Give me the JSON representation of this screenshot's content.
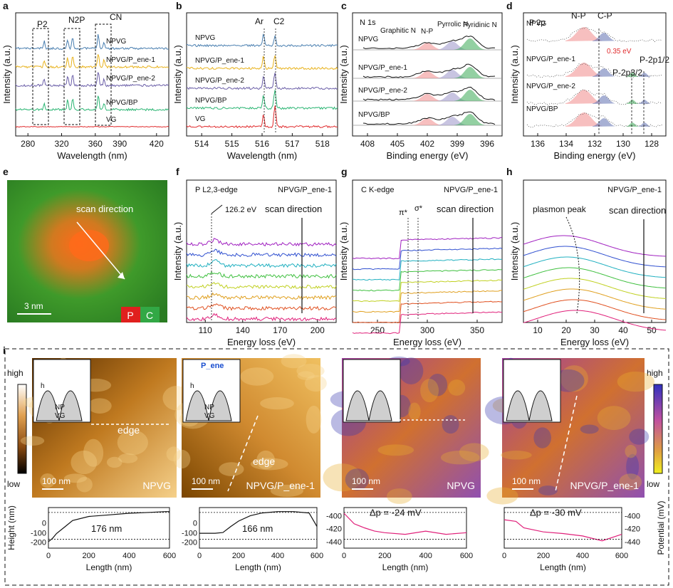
{
  "panel_letters": [
    "a",
    "b",
    "c",
    "d",
    "e",
    "f",
    "g",
    "h",
    "i"
  ],
  "colors": {
    "NPVG": "#4a7fb0",
    "NPVG/P_ene-1": "#e8b21c",
    "NPVG/P_ene-2": "#6b5fa8",
    "NPVG/BP": "#2bb573",
    "VG": "#e0292b",
    "NP": "#f08a8a",
    "Pyrrolic": "#9b93c9",
    "Pyridinic": "#3aaa55",
    "CP": "#5f6fb0",
    "scan": [
      "#a020c0",
      "#3050d0",
      "#20b0c0",
      "#40c040",
      "#c0d020",
      "#e0a020",
      "#e05020",
      "#e0207a"
    ]
  },
  "chart_data": [
    {
      "type": "line",
      "panel": "a",
      "xlabel": "Wavelength (nm)",
      "ylabel": "Intensity (a.u.)",
      "ticks": [
        "280",
        "320",
        "360",
        "390",
        "420"
      ],
      "series": [
        {
          "name": "NPVG"
        },
        {
          "name": "NPVG/P_ene-1"
        },
        {
          "name": "NPVG/P_ene-2"
        },
        {
          "name": "NPVG/BP"
        },
        {
          "name": "VG"
        }
      ],
      "annotations": [
        "P2",
        "N2P",
        "CN"
      ]
    },
    {
      "type": "line",
      "panel": "b",
      "xlabel": "Wavelength (nm)",
      "ylabel": "Intensity (a.u.)",
      "ticks": [
        "514",
        "515",
        "516",
        "517",
        "518"
      ],
      "series": [
        {
          "name": "NPVG"
        },
        {
          "name": "NPVG/P_ene-1"
        },
        {
          "name": "NPVG/P_ene-2"
        },
        {
          "name": "NPVG/BP"
        },
        {
          "name": "VG"
        }
      ],
      "annotations": [
        "Ar",
        "C2"
      ]
    },
    {
      "type": "line",
      "panel": "c",
      "title": "N 1s",
      "xlabel": "Binding energy (eV)",
      "ylabel": "Intensity (a.u.)",
      "ticks": [
        "408",
        "405",
        "402",
        "399",
        "396"
      ],
      "series": [
        {
          "name": "NPVG"
        },
        {
          "name": "NPVG/P_ene-1"
        },
        {
          "name": "NPVG/P_ene-2"
        },
        {
          "name": "NPVG/BP"
        }
      ],
      "annotations": [
        "Graphitic N",
        "N-P",
        "Pyrrolic N",
        "Pyridinic N"
      ]
    },
    {
      "type": "line",
      "panel": "d",
      "title": "P 2p",
      "xlabel": "Binding energy (eV)",
      "ylabel": "Intensity (a.u.)",
      "ticks": [
        "136",
        "134",
        "132",
        "130",
        "128"
      ],
      "series": [
        {
          "name": "NPVG"
        },
        {
          "name": "NPVG/P_ene-1"
        },
        {
          "name": "NPVG/P_ene-2"
        },
        {
          "name": "NPVG/BP"
        }
      ],
      "annotations": [
        "N-P",
        "C-P",
        "0.35 eV",
        "P-2p3/2",
        "P-2p1/2"
      ]
    },
    {
      "type": "line",
      "panel": "f",
      "title": "P L2,3-edge",
      "sample": "NPVG/P_ene-1",
      "xlabel": "Energy loss (eV)",
      "ylabel": "Intensity (a.u.)",
      "ticks": [
        "110",
        "140",
        "170",
        "200"
      ],
      "annotations": [
        "126.2 eV",
        "scan direction"
      ],
      "n_spectra": 8
    },
    {
      "type": "line",
      "panel": "g",
      "title": "C K-edge",
      "sample": "NPVG/P_ene-1",
      "xlabel": "Energy loss (eV)",
      "ylabel": "Intensity (a.u.)",
      "ticks": [
        "250",
        "300",
        "350"
      ],
      "annotations": [
        "π*",
        "σ*",
        "scan direction"
      ],
      "n_spectra": 8
    },
    {
      "type": "line",
      "panel": "h",
      "sample": "NPVG/P_ene-1",
      "xlabel": "Energy loss (eV)",
      "ylabel": "Intensity (a.u.)",
      "ticks": [
        "10",
        "20",
        "30",
        "40",
        "50"
      ],
      "annotations": [
        "plasmon peak",
        "scan direction"
      ],
      "n_spectra": 8
    },
    {
      "type": "line",
      "panel": "i-1",
      "xlabel": "Length (nm)",
      "ylabel": "Height (nm)",
      "xticks": [
        "0",
        "200",
        "400",
        "600"
      ],
      "yticks": [
        "0",
        "-100",
        "-200"
      ],
      "series": [
        {
          "x": [
            0,
            20,
            40,
            80,
            120,
            200,
            300,
            400,
            500,
            580,
            600
          ],
          "y": [
            -160,
            -140,
            -110,
            -70,
            -30,
            -5,
            5,
            15,
            20,
            25,
            25
          ]
        }
      ],
      "annotations": [
        "176 nm",
        "h"
      ]
    },
    {
      "type": "line",
      "panel": "i-2",
      "xlabel": "Length (nm)",
      "xticks": [
        "0",
        "200",
        "400",
        "600"
      ],
      "yticks": [
        "0",
        "-100",
        "-200"
      ],
      "series": [
        {
          "x": [
            0,
            80,
            120,
            160,
            200,
            260,
            320,
            400,
            480,
            560,
            600
          ],
          "y": [
            -90,
            -90,
            -85,
            -40,
            0,
            40,
            60,
            70,
            70,
            60,
            -40
          ]
        }
      ],
      "annotations": [
        "166 nm",
        "h"
      ]
    },
    {
      "type": "line",
      "panel": "i-3",
      "xlabel": "Length (nm)",
      "xticks": [
        "0",
        "200",
        "400",
        "600"
      ],
      "yticks": [
        "-400",
        "-420",
        "-440"
      ],
      "series": [
        {
          "x": [
            0,
            50,
            100,
            150,
            200,
            300,
            400,
            500,
            600
          ],
          "y": [
            -402,
            -415,
            -420,
            -424,
            -426,
            -428,
            -424,
            -428,
            -426
          ]
        }
      ],
      "annotations": [
        "Δp = -24 mV"
      ]
    },
    {
      "type": "line",
      "panel": "i-4",
      "xlabel": "Length (nm)",
      "ylabel": "Potential (mV)",
      "xticks": [
        "0",
        "200",
        "400",
        "600"
      ],
      "yticks": [
        "-400",
        "-420",
        "-440"
      ],
      "series": [
        {
          "x": [
            0,
            60,
            100,
            200,
            300,
            400,
            500,
            600
          ],
          "y": [
            -410,
            -412,
            -420,
            -425,
            -427,
            -430,
            -436,
            -428
          ]
        }
      ],
      "annotations": [
        "Δp = -30 mV"
      ]
    }
  ],
  "panel_e": {
    "label_scan": "scan direction",
    "scale": "3 nm",
    "P": "P",
    "C": "C"
  },
  "panel_i": {
    "high": "high",
    "low": "low",
    "images": [
      {
        "name": "NPVG",
        "scale": "100 nm",
        "tag": "edge",
        "inset": [
          "NP",
          "VG",
          "h"
        ]
      },
      {
        "name": "NPVG/P_ene-1",
        "scale": "100 nm",
        "tag": "edge",
        "inset": [
          "P_ene",
          "NP",
          "VG",
          "h"
        ]
      },
      {
        "name": "NPVG",
        "scale": "100 nm"
      },
      {
        "name": "NPVG/P_ene-1",
        "scale": "100 nm"
      }
    ]
  }
}
